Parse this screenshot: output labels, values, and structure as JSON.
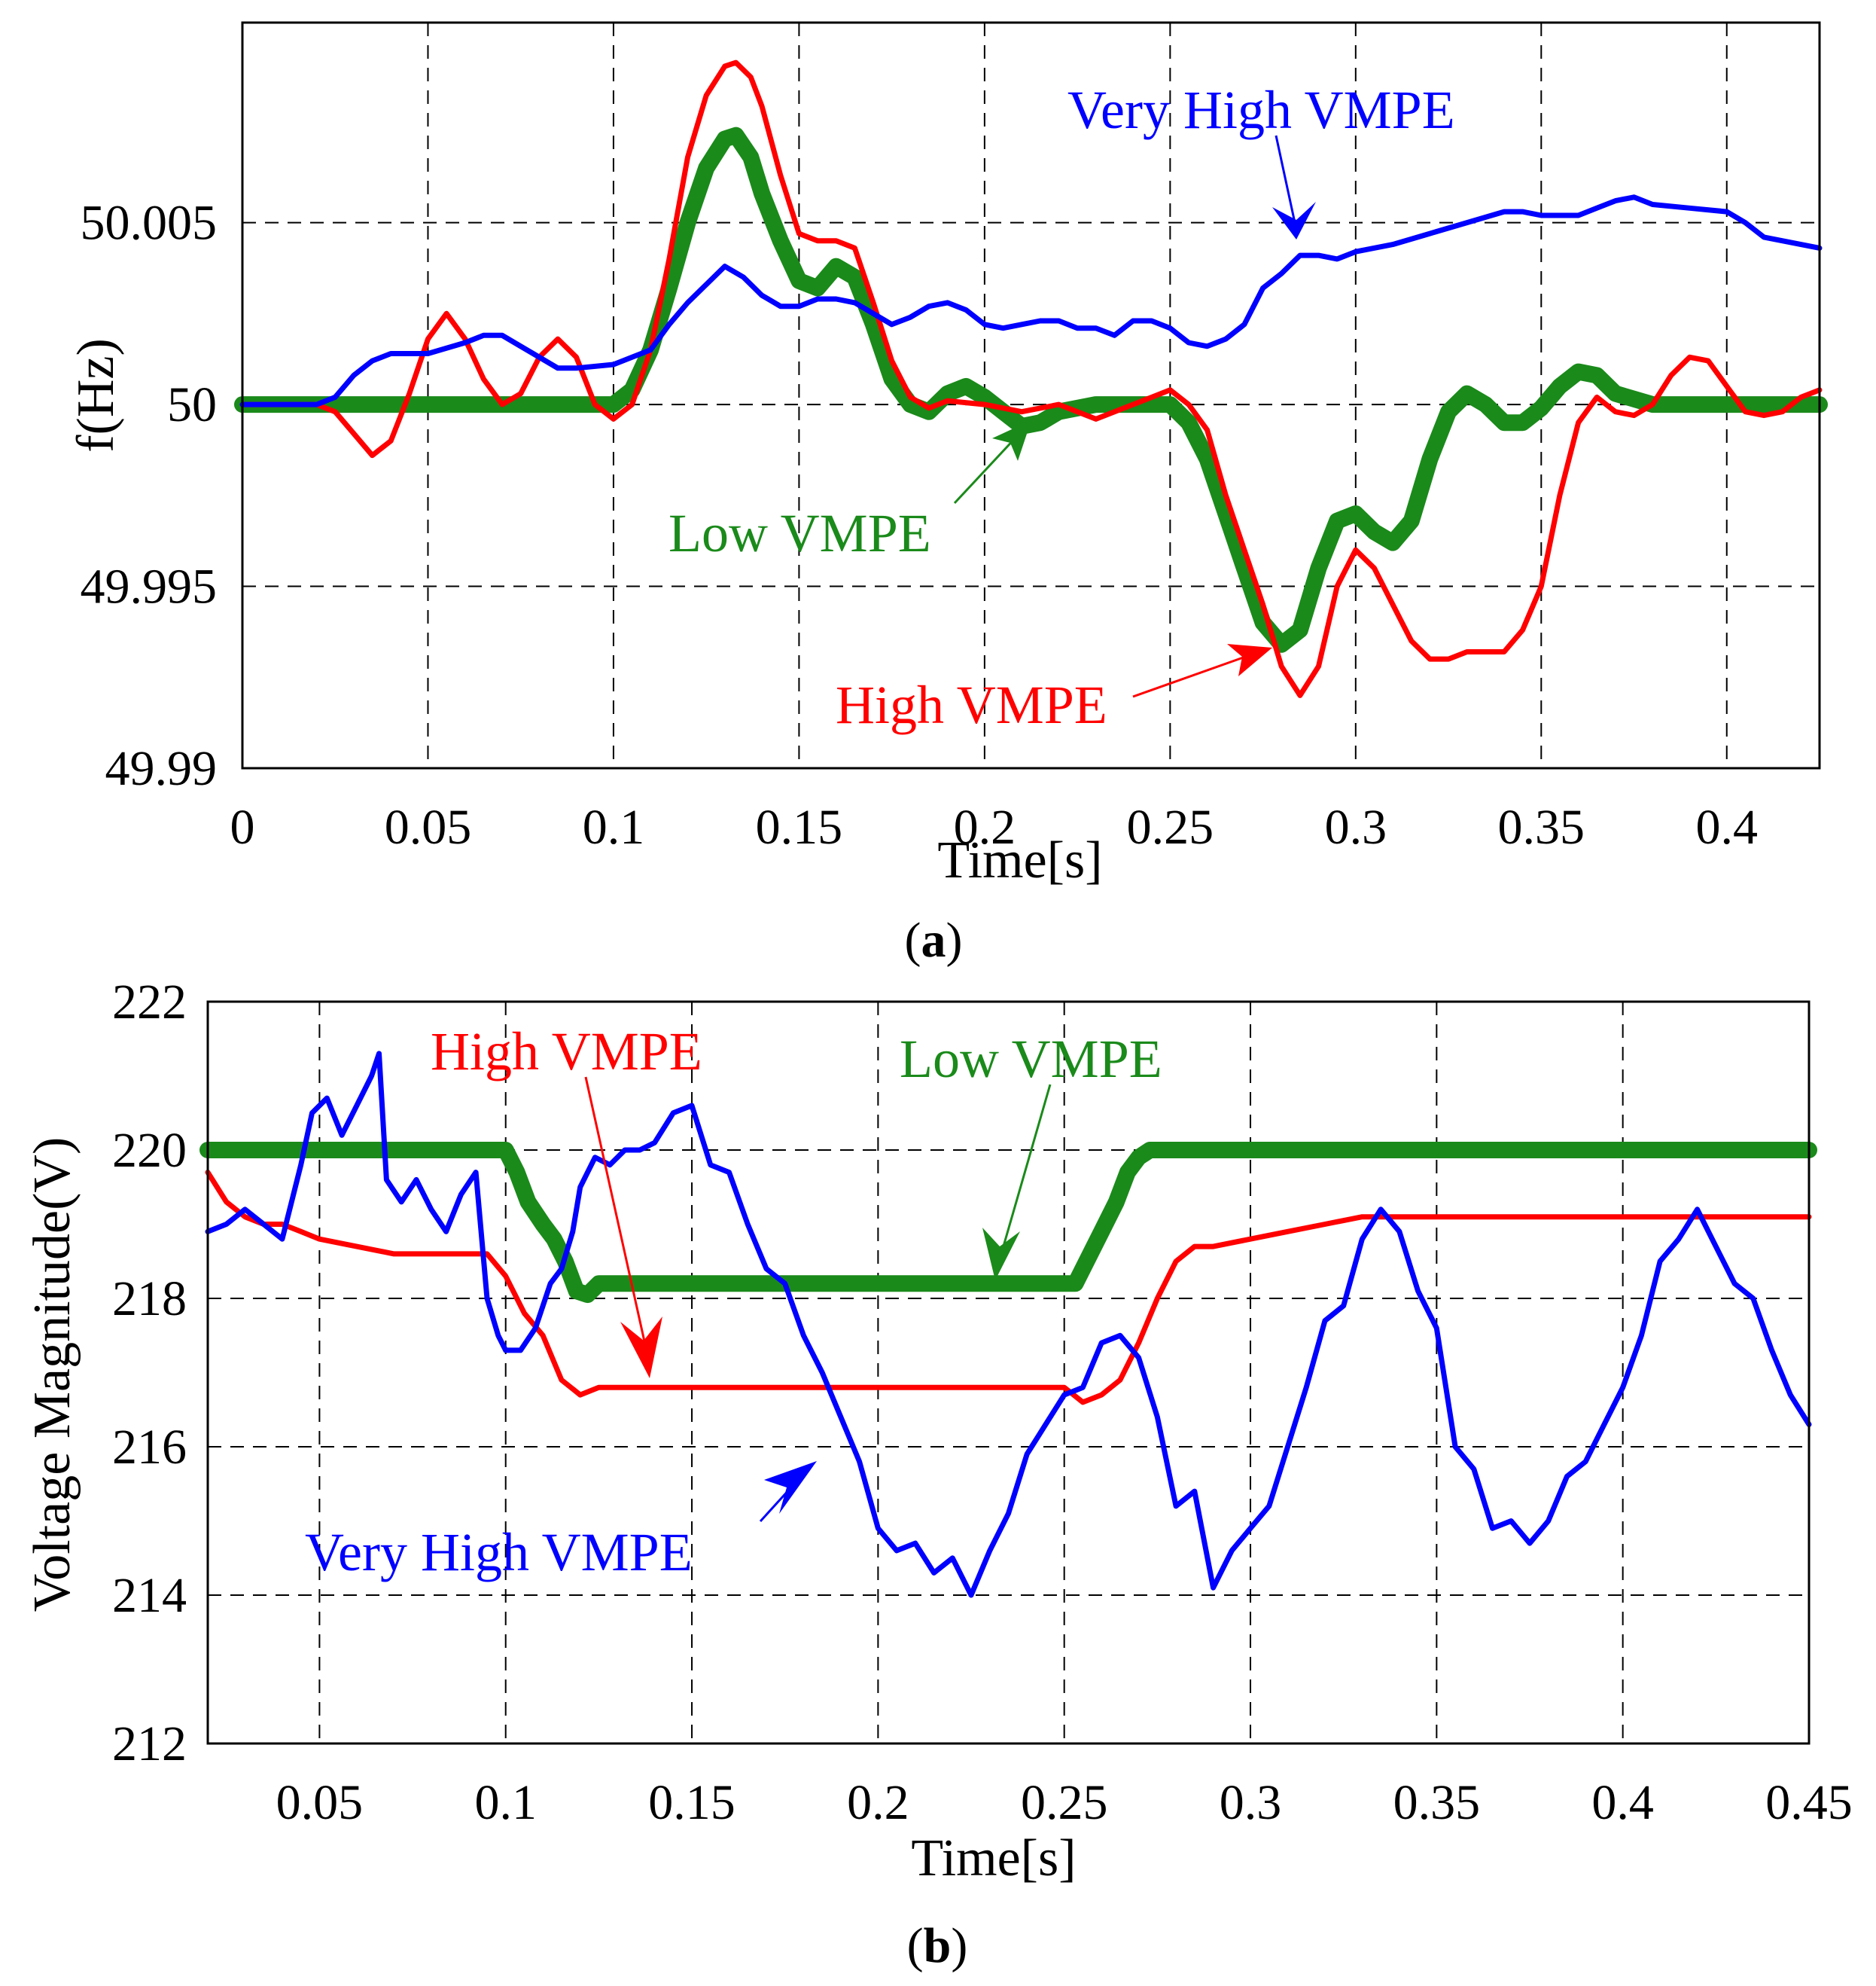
{
  "chart_data": [
    {
      "panel": "(a)",
      "caption_letter": "a",
      "type": "line",
      "xlabel": "Time[s]",
      "ylabel": "f(Hz)",
      "xlim": [
        0,
        0.425
      ],
      "ylim": [
        49.99,
        50.0105
      ],
      "xticks": [
        0,
        0.05,
        0.1,
        0.15,
        0.2,
        0.25,
        0.3,
        0.35,
        0.4
      ],
      "xtick_labels": [
        "0",
        "0.05",
        "0.1",
        "0.15",
        "0.2",
        "0.25",
        "0.3",
        "0.35",
        "0.4"
      ],
      "yticks": [
        49.99,
        49.995,
        50,
        50.005
      ],
      "ytick_labels": [
        "49.99",
        "49.995",
        "50",
        "50.005"
      ],
      "grid": true,
      "series": [
        {
          "name": "Low VMPE",
          "color": "#1a8a1a",
          "weight": "thick",
          "x": [
            0,
            0.1,
            0.105,
            0.11,
            0.115,
            0.12,
            0.125,
            0.13,
            0.133,
            0.137,
            0.14,
            0.145,
            0.15,
            0.155,
            0.16,
            0.165,
            0.17,
            0.175,
            0.18,
            0.185,
            0.19,
            0.195,
            0.2,
            0.205,
            0.21,
            0.215,
            0.22,
            0.23,
            0.24,
            0.25,
            0.255,
            0.26,
            0.265,
            0.27,
            0.275,
            0.28,
            0.285,
            0.29,
            0.295,
            0.3,
            0.305,
            0.31,
            0.315,
            0.32,
            0.325,
            0.33,
            0.335,
            0.34,
            0.345,
            0.35,
            0.355,
            0.36,
            0.365,
            0.37,
            0.38,
            0.425
          ],
          "y": [
            50.0,
            50.0,
            50.0004,
            50.0015,
            50.0032,
            50.005,
            50.0065,
            50.0073,
            50.0074,
            50.0068,
            50.0058,
            50.0045,
            50.0034,
            50.0032,
            50.0038,
            50.0035,
            50.0022,
            50.0007,
            50.0,
            49.9998,
            50.0003,
            50.0005,
            50.0002,
            49.9998,
            49.9994,
            49.9995,
            49.9998,
            50.0,
            50.0,
            50.0,
            49.9995,
            49.9985,
            49.997,
            49.9955,
            49.994,
            49.9934,
            49.9938,
            49.9955,
            49.9968,
            49.997,
            49.9965,
            49.9962,
            49.9968,
            49.9985,
            49.9998,
            50.0003,
            50.0,
            49.9995,
            49.9995,
            49.9999,
            50.0005,
            50.0009,
            50.0008,
            50.0003,
            50.0,
            50.0
          ]
        },
        {
          "name": "High VMPE",
          "color": "#ff0000",
          "weight": "medium",
          "x": [
            0,
            0.02,
            0.025,
            0.03,
            0.035,
            0.04,
            0.045,
            0.05,
            0.055,
            0.06,
            0.065,
            0.07,
            0.075,
            0.08,
            0.085,
            0.09,
            0.095,
            0.1,
            0.105,
            0.11,
            0.115,
            0.12,
            0.125,
            0.13,
            0.133,
            0.137,
            0.14,
            0.145,
            0.15,
            0.155,
            0.16,
            0.165,
            0.17,
            0.175,
            0.18,
            0.185,
            0.19,
            0.2,
            0.21,
            0.22,
            0.23,
            0.24,
            0.25,
            0.255,
            0.26,
            0.265,
            0.27,
            0.275,
            0.28,
            0.285,
            0.29,
            0.295,
            0.3,
            0.305,
            0.31,
            0.315,
            0.32,
            0.325,
            0.33,
            0.335,
            0.34,
            0.345,
            0.35,
            0.355,
            0.36,
            0.365,
            0.37,
            0.375,
            0.38,
            0.385,
            0.39,
            0.395,
            0.4,
            0.405,
            0.41,
            0.415,
            0.42,
            0.425
          ],
          "y": [
            50.0,
            50.0,
            49.9998,
            49.9992,
            49.9986,
            49.999,
            50.0003,
            50.0018,
            50.0025,
            50.0018,
            50.0007,
            50.0,
            50.0003,
            50.0013,
            50.0018,
            50.0013,
            50.0,
            49.9996,
            50.0,
            50.0015,
            50.004,
            50.0068,
            50.0085,
            50.0093,
            50.0094,
            50.009,
            50.0082,
            50.0063,
            50.0047,
            50.0045,
            50.0045,
            50.0043,
            50.0028,
            50.0012,
            50.0002,
            49.9999,
            50.0001,
            50.0,
            49.9998,
            50.0,
            49.9996,
            50.0,
            50.0004,
            50.0,
            49.9993,
            49.9975,
            49.996,
            49.9945,
            49.9928,
            49.992,
            49.9928,
            49.995,
            49.996,
            49.9955,
            49.9945,
            49.9935,
            49.993,
            49.993,
            49.9932,
            49.9932,
            49.9932,
            49.9938,
            49.995,
            49.9975,
            49.9995,
            50.0002,
            49.9998,
            49.9997,
            50.0,
            50.0008,
            50.0013,
            50.0012,
            50.0005,
            49.9998,
            49.9997,
            49.9998,
            50.0002,
            50.0004
          ]
        },
        {
          "name": "Very High VMPE",
          "color": "#0000ff",
          "weight": "medium",
          "x": [
            0,
            0.02,
            0.025,
            0.03,
            0.035,
            0.04,
            0.05,
            0.06,
            0.065,
            0.07,
            0.075,
            0.08,
            0.085,
            0.09,
            0.1,
            0.105,
            0.11,
            0.115,
            0.12,
            0.125,
            0.13,
            0.135,
            0.14,
            0.145,
            0.15,
            0.155,
            0.16,
            0.165,
            0.17,
            0.175,
            0.18,
            0.185,
            0.19,
            0.195,
            0.2,
            0.205,
            0.21,
            0.215,
            0.22,
            0.225,
            0.23,
            0.235,
            0.24,
            0.245,
            0.25,
            0.255,
            0.26,
            0.265,
            0.27,
            0.275,
            0.28,
            0.285,
            0.29,
            0.295,
            0.3,
            0.31,
            0.32,
            0.33,
            0.34,
            0.345,
            0.35,
            0.36,
            0.365,
            0.37,
            0.375,
            0.38,
            0.39,
            0.4,
            0.405,
            0.41,
            0.425
          ],
          "y": [
            50.0,
            50.0,
            50.0002,
            50.0008,
            50.0012,
            50.0014,
            50.0014,
            50.0017,
            50.0019,
            50.0019,
            50.0016,
            50.0013,
            50.001,
            50.001,
            50.0011,
            50.0013,
            50.0015,
            50.0022,
            50.0028,
            50.0033,
            50.0038,
            50.0035,
            50.003,
            50.0027,
            50.0027,
            50.0029,
            50.0029,
            50.0028,
            50.0025,
            50.0022,
            50.0024,
            50.0027,
            50.0028,
            50.0026,
            50.0022,
            50.0021,
            50.0022,
            50.0023,
            50.0023,
            50.0021,
            50.0021,
            50.0019,
            50.0023,
            50.0023,
            50.0021,
            50.0017,
            50.0016,
            50.0018,
            50.0022,
            50.0032,
            50.0036,
            50.0041,
            50.0041,
            50.004,
            50.0042,
            50.0044,
            50.0047,
            50.005,
            50.0053,
            50.0053,
            50.0052,
            50.0052,
            50.0054,
            50.0056,
            50.0057,
            50.0055,
            50.0054,
            50.0053,
            50.005,
            50.0046,
            50.0043
          ]
        }
      ],
      "annotations": [
        {
          "text": "Very High VMPE",
          "color": "#0000ff"
        },
        {
          "text": "Low VMPE",
          "color": "#1a8a1a"
        },
        {
          "text": "High VMPE",
          "color": "#ff0000"
        }
      ]
    },
    {
      "panel": "(b)",
      "caption_letter": "b",
      "type": "line",
      "xlabel": "Time[s]",
      "ylabel": "Voltage Magnitude(V)",
      "xlim": [
        0.02,
        0.45
      ],
      "ylim": [
        212,
        222
      ],
      "xticks": [
        0.05,
        0.1,
        0.15,
        0.2,
        0.25,
        0.3,
        0.35,
        0.4,
        0.45
      ],
      "xtick_labels": [
        "0.05",
        "0.1",
        "0.15",
        "0.2",
        "0.25",
        "0.3",
        "0.35",
        "0.4",
        "0.45"
      ],
      "yticks": [
        212,
        214,
        216,
        218,
        220,
        222
      ],
      "ytick_labels": [
        "212",
        "214",
        "216",
        "218",
        "220",
        "222"
      ],
      "grid": true,
      "series": [
        {
          "name": "Low VMPE",
          "color": "#1a8a1a",
          "weight": "thick",
          "x": [
            0.02,
            0.1,
            0.103,
            0.106,
            0.11,
            0.113,
            0.116,
            0.119,
            0.122,
            0.125,
            0.13,
            0.2,
            0.253,
            0.257,
            0.26,
            0.264,
            0.267,
            0.27,
            0.273,
            0.28,
            0.45
          ],
          "y": [
            220.0,
            220.0,
            219.7,
            219.3,
            219.0,
            218.8,
            218.5,
            218.1,
            218.05,
            218.2,
            218.2,
            218.2,
            218.2,
            218.6,
            218.9,
            219.3,
            219.7,
            219.9,
            220.0,
            220.0,
            220.0
          ]
        },
        {
          "name": "High VMPE",
          "color": "#ff0000",
          "weight": "medium",
          "x": [
            0.02,
            0.025,
            0.03,
            0.035,
            0.04,
            0.045,
            0.05,
            0.06,
            0.07,
            0.08,
            0.09,
            0.095,
            0.1,
            0.105,
            0.11,
            0.115,
            0.12,
            0.125,
            0.13,
            0.2,
            0.24,
            0.25,
            0.255,
            0.26,
            0.265,
            0.27,
            0.275,
            0.28,
            0.285,
            0.29,
            0.3,
            0.31,
            0.32,
            0.33,
            0.45
          ],
          "y": [
            219.7,
            219.3,
            219.1,
            219.0,
            219.0,
            218.9,
            218.8,
            218.7,
            218.6,
            218.6,
            218.6,
            218.6,
            218.3,
            217.8,
            217.5,
            216.9,
            216.7,
            216.8,
            216.8,
            216.8,
            216.8,
            216.8,
            216.6,
            216.7,
            216.9,
            217.4,
            218.0,
            218.5,
            218.7,
            218.7,
            218.8,
            218.9,
            219.0,
            219.1,
            219.1
          ]
        },
        {
          "name": "Very High VMPE",
          "color": "#0000ff",
          "weight": "medium",
          "x": [
            0.02,
            0.025,
            0.03,
            0.035,
            0.04,
            0.045,
            0.048,
            0.052,
            0.056,
            0.06,
            0.064,
            0.066,
            0.068,
            0.072,
            0.076,
            0.08,
            0.084,
            0.088,
            0.092,
            0.095,
            0.098,
            0.1,
            0.104,
            0.108,
            0.112,
            0.115,
            0.118,
            0.12,
            0.124,
            0.128,
            0.132,
            0.136,
            0.14,
            0.145,
            0.15,
            0.155,
            0.16,
            0.165,
            0.17,
            0.175,
            0.18,
            0.185,
            0.19,
            0.195,
            0.2,
            0.205,
            0.21,
            0.215,
            0.22,
            0.225,
            0.23,
            0.235,
            0.24,
            0.245,
            0.25,
            0.255,
            0.26,
            0.265,
            0.27,
            0.275,
            0.28,
            0.285,
            0.29,
            0.295,
            0.3,
            0.305,
            0.31,
            0.315,
            0.32,
            0.325,
            0.33,
            0.335,
            0.34,
            0.345,
            0.35,
            0.355,
            0.36,
            0.365,
            0.37,
            0.375,
            0.38,
            0.385,
            0.39,
            0.395,
            0.4,
            0.405,
            0.41,
            0.415,
            0.42,
            0.425,
            0.43,
            0.435,
            0.44,
            0.445,
            0.45
          ],
          "y": [
            218.9,
            219.0,
            219.2,
            219.0,
            218.8,
            219.8,
            220.5,
            220.7,
            220.2,
            220.6,
            221.0,
            221.3,
            219.6,
            219.3,
            219.6,
            219.2,
            218.9,
            219.4,
            219.7,
            218.0,
            217.5,
            217.3,
            217.3,
            217.6,
            218.2,
            218.4,
            218.9,
            219.5,
            219.9,
            219.8,
            220.0,
            220.0,
            220.1,
            220.5,
            220.6,
            219.8,
            219.7,
            219.0,
            218.4,
            218.2,
            217.5,
            217.0,
            216.4,
            215.8,
            214.9,
            214.6,
            214.7,
            214.3,
            214.5,
            214.0,
            214.6,
            215.1,
            215.9,
            216.3,
            216.7,
            216.8,
            217.4,
            217.5,
            217.2,
            216.4,
            215.2,
            215.4,
            214.1,
            214.6,
            214.9,
            215.2,
            216.0,
            216.8,
            217.7,
            217.9,
            218.8,
            219.2,
            218.9,
            218.1,
            217.6,
            216.0,
            215.7,
            214.9,
            215.0,
            214.7,
            215.0,
            215.6,
            215.8,
            216.3,
            216.8,
            217.5,
            218.5,
            218.8,
            219.2,
            218.7,
            218.2,
            218.0,
            217.3,
            216.7,
            216.3
          ]
        }
      ],
      "annotations": [
        {
          "text": "High VMPE",
          "color": "#ff0000"
        },
        {
          "text": "Low VMPE",
          "color": "#1a8a1a"
        },
        {
          "text": "Very High VMPE",
          "color": "#0000ff"
        }
      ]
    }
  ]
}
